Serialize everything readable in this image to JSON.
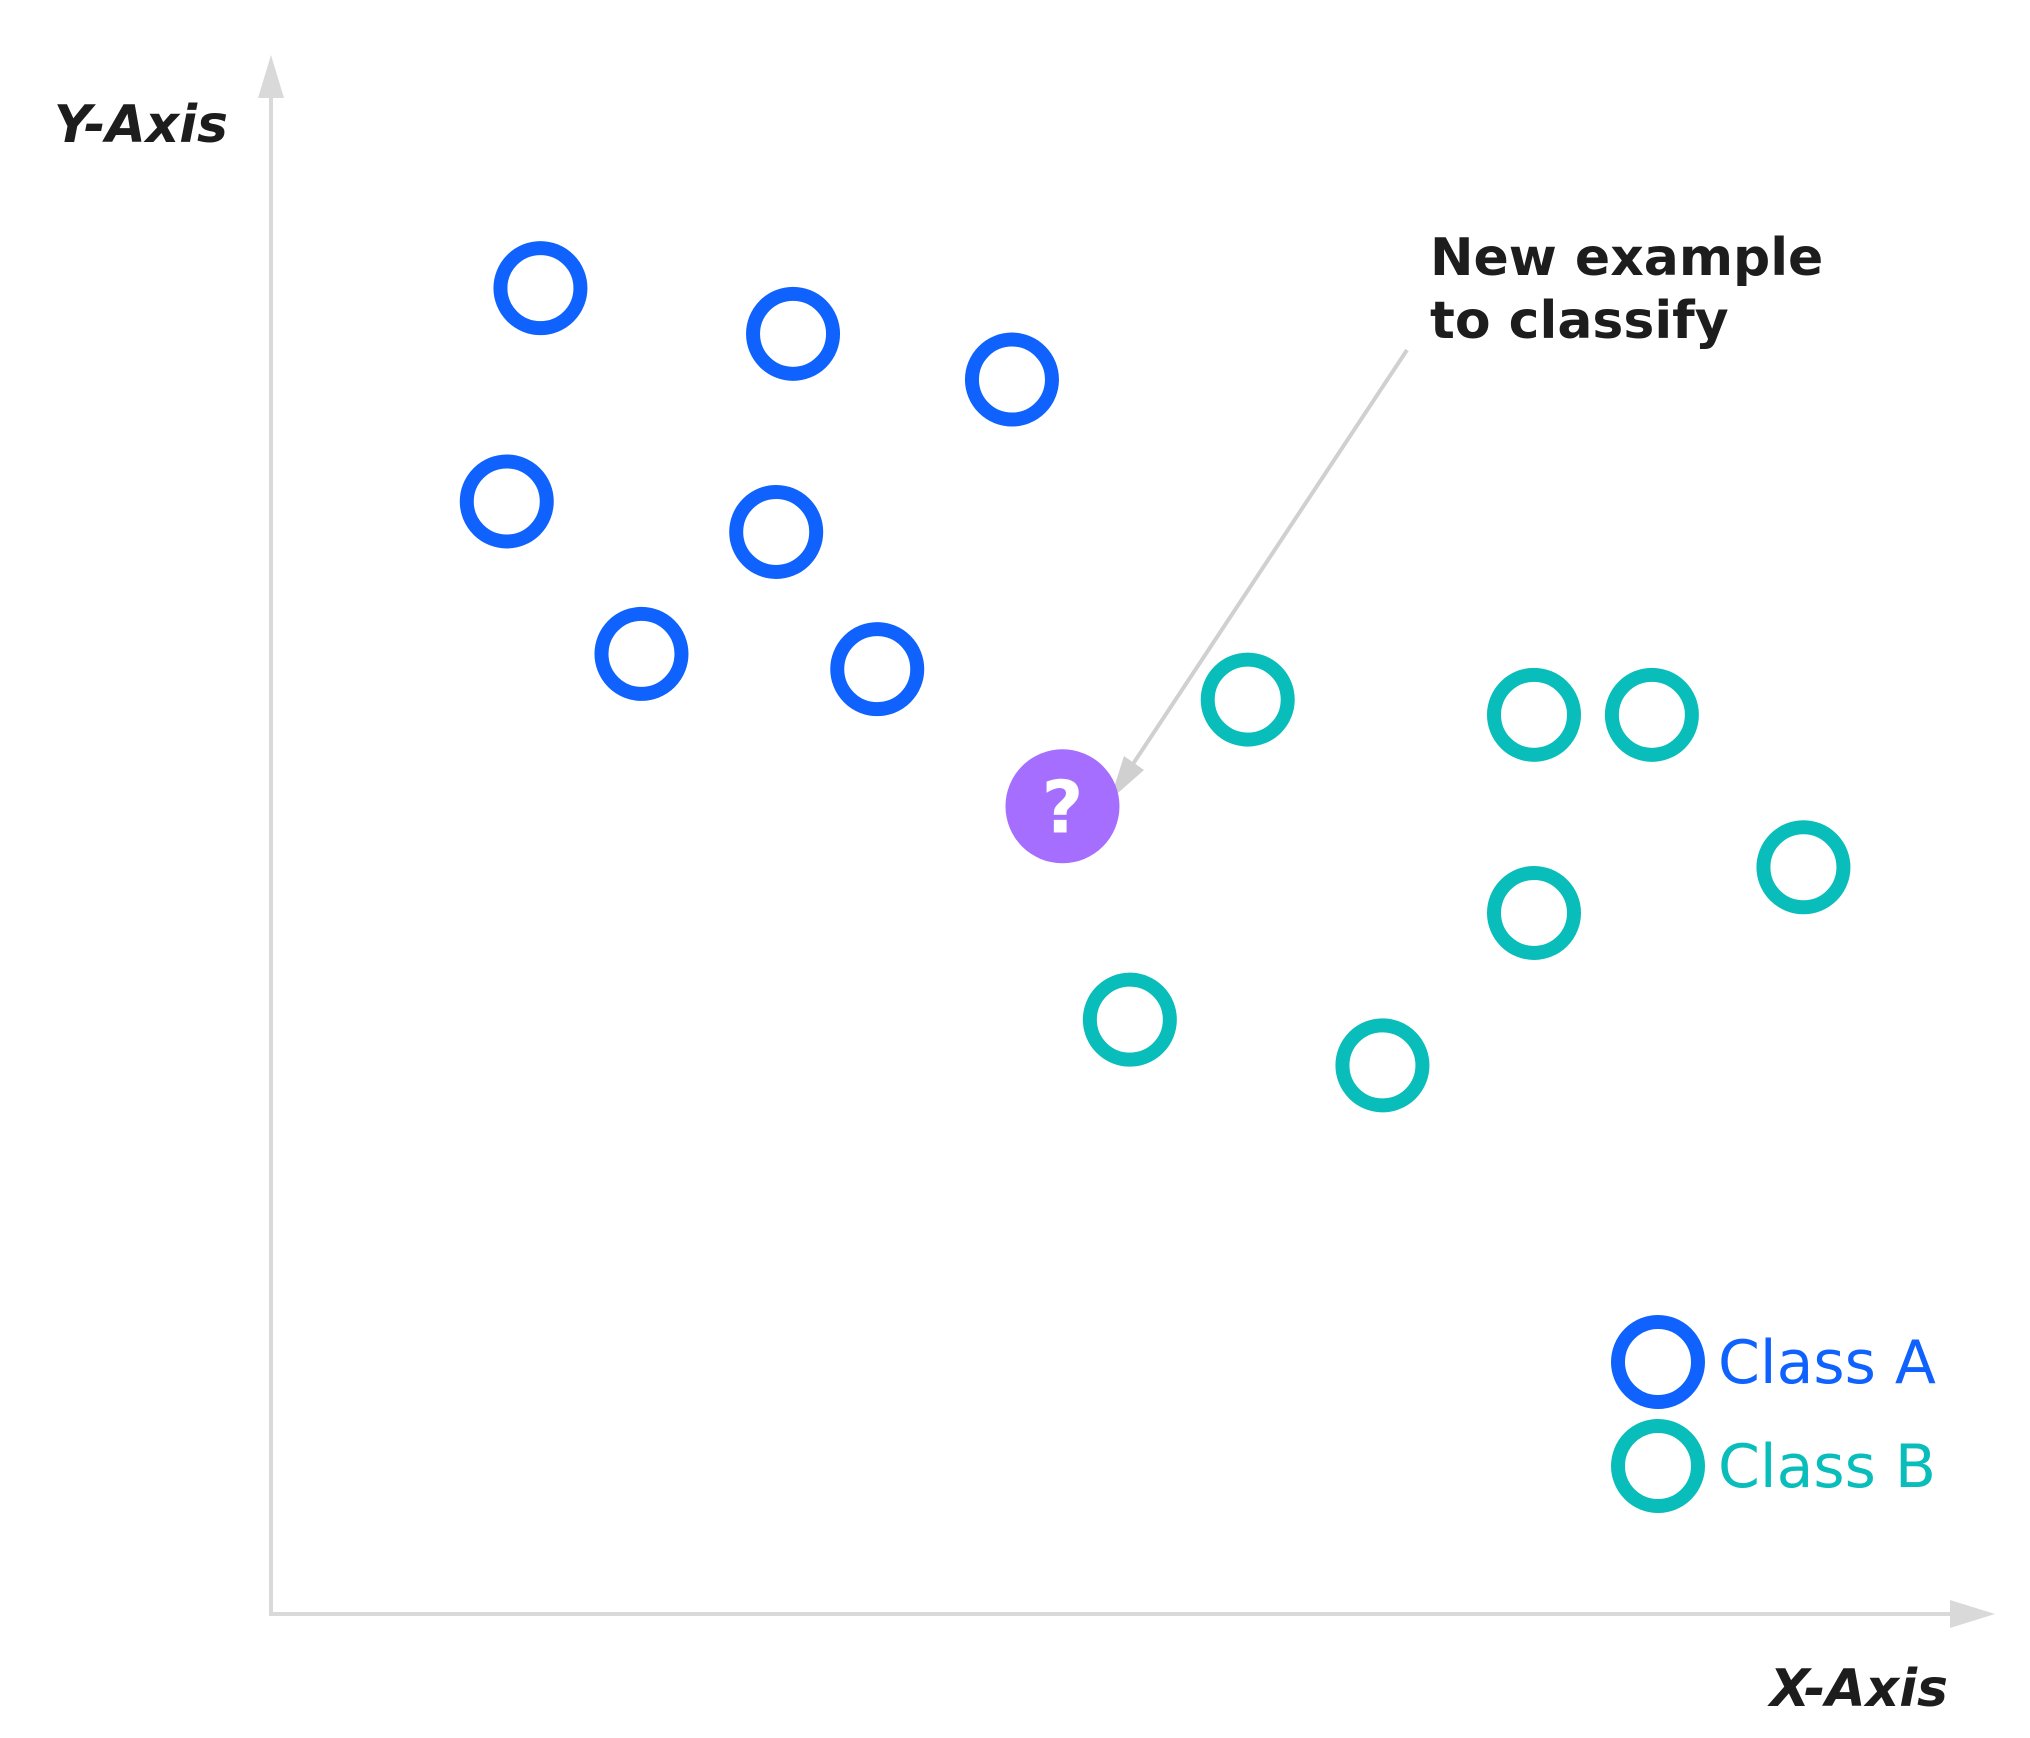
{
  "chart_data": {
    "type": "scatter",
    "xlabel": "X-Axis",
    "ylabel": "Y-Axis",
    "xlim": [
      0,
      100
    ],
    "ylim": [
      0,
      100
    ],
    "grid": false,
    "legend_position": "bottom-right",
    "series": [
      {
        "name": "Class A",
        "color": "#0f62fe",
        "marker": "hollow-circle",
        "points": [
          {
            "x": 16,
            "y": 87
          },
          {
            "x": 31,
            "y": 84
          },
          {
            "x": 44,
            "y": 81
          },
          {
            "x": 14,
            "y": 73
          },
          {
            "x": 30,
            "y": 71
          },
          {
            "x": 22,
            "y": 63
          },
          {
            "x": 36,
            "y": 62
          }
        ]
      },
      {
        "name": "Class B",
        "color": "#08bdba",
        "marker": "hollow-circle",
        "points": [
          {
            "x": 58,
            "y": 60
          },
          {
            "x": 75,
            "y": 59
          },
          {
            "x": 82,
            "y": 59
          },
          {
            "x": 91,
            "y": 49
          },
          {
            "x": 75,
            "y": 46
          },
          {
            "x": 51,
            "y": 39
          },
          {
            "x": 66,
            "y": 36
          }
        ]
      }
    ],
    "query_point": {
      "x": 47,
      "y": 53,
      "color": "#a56eff",
      "symbol": "?"
    },
    "annotation": {
      "lines": [
        "New example",
        "to classify"
      ],
      "arrow_color": "#d0d0d0"
    }
  }
}
